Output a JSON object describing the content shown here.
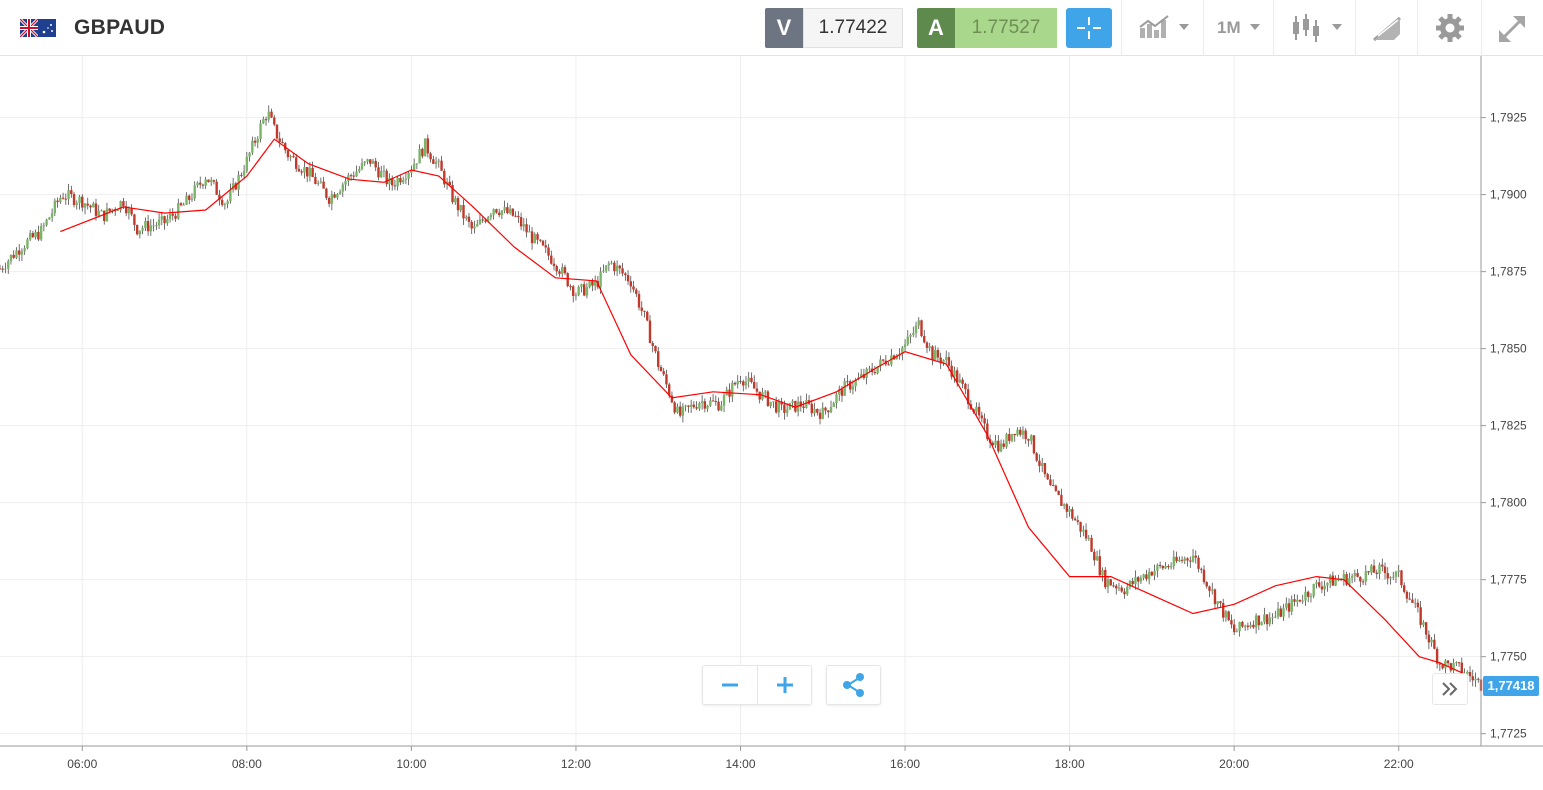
{
  "header": {
    "symbol": "GBPAUD",
    "flag_icon": "gb-au-flag-icon",
    "sell_label": "V",
    "sell_price": "1.77422",
    "buy_label": "A",
    "buy_price": "1.77527",
    "timeframe": "1M",
    "buttons": [
      "crosshair-icon",
      "chart-type-icon",
      "timeframe-selector",
      "candlestick-icon",
      "drawing-tools-icon",
      "gear-icon",
      "fullscreen-icon"
    ]
  },
  "colors": {
    "up_candle": "#7ab567",
    "down_candle": "#c0392b",
    "moving_average": "#ff0000",
    "accent": "#3fa4e8",
    "grid": "#eeeeee"
  },
  "controls": {
    "zoom_out_icon": "minus-icon",
    "zoom_in_icon": "plus-icon",
    "share_icon": "share-icon",
    "scroll_end_icon": "double-chevron-right-icon"
  },
  "current_price_label": "1,77418",
  "chart_data": {
    "type": "candlestick",
    "x_tick_labels": [
      "06:00",
      "08:00",
      "10:00",
      "12:00",
      "14:00",
      "16:00",
      "18:00",
      "20:00",
      "22:00"
    ],
    "y_tick_labels": [
      "1,7925",
      "1,7900",
      "1,7875",
      "1,7850",
      "1,7825",
      "1,7800",
      "1,7775",
      "1,7750",
      "1,7725"
    ],
    "ylim": [
      1.7721,
      1.7945
    ],
    "x_range": [
      "05:00",
      "23:00"
    ],
    "grid": true,
    "moving_average": {
      "color": "red",
      "points": [
        [
          "05:44",
          1.7888
        ],
        [
          "06:30",
          1.7896
        ],
        [
          "07:00",
          1.7894
        ],
        [
          "07:30",
          1.7895
        ],
        [
          "08:00",
          1.7906
        ],
        [
          "08:20",
          1.7918
        ],
        [
          "08:45",
          1.791
        ],
        [
          "09:15",
          1.7905
        ],
        [
          "09:40",
          1.7904
        ],
        [
          "10:00",
          1.7908
        ],
        [
          "10:20",
          1.7906
        ],
        [
          "10:45",
          1.7896
        ],
        [
          "11:15",
          1.7883
        ],
        [
          "11:45",
          1.7873
        ],
        [
          "12:15",
          1.7872
        ],
        [
          "12:40",
          1.7848
        ],
        [
          "13:10",
          1.7834
        ],
        [
          "13:40",
          1.7836
        ],
        [
          "14:15",
          1.7835
        ],
        [
          "14:40",
          1.7831
        ],
        [
          "15:10",
          1.7836
        ],
        [
          "15:40",
          1.7844
        ],
        [
          "16:00",
          1.7849
        ],
        [
          "16:30",
          1.7845
        ],
        [
          "17:00",
          1.7822
        ],
        [
          "17:30",
          1.7792
        ],
        [
          "18:00",
          1.7776
        ],
        [
          "18:30",
          1.7776
        ],
        [
          "18:50",
          1.7772
        ],
        [
          "19:30",
          1.7764
        ],
        [
          "20:00",
          1.7767
        ],
        [
          "20:30",
          1.7773
        ],
        [
          "21:00",
          1.7776
        ],
        [
          "21:20",
          1.7775
        ],
        [
          "21:50",
          1.7762
        ],
        [
          "22:15",
          1.775
        ],
        [
          "22:30",
          1.7748
        ],
        [
          "22:50",
          1.7744
        ]
      ]
    },
    "close_path": [
      [
        "05:00",
        1.7876
      ],
      [
        "05:15",
        1.7883
      ],
      [
        "05:30",
        1.7888
      ],
      [
        "05:45",
        1.79
      ],
      [
        "06:00",
        1.7898
      ],
      [
        "06:15",
        1.7893
      ],
      [
        "06:30",
        1.7898
      ],
      [
        "06:40",
        1.7889
      ],
      [
        "07:00",
        1.7891
      ],
      [
        "07:15",
        1.7897
      ],
      [
        "07:30",
        1.7906
      ],
      [
        "07:45",
        1.7897
      ],
      [
        "08:00",
        1.7911
      ],
      [
        "08:10",
        1.7922
      ],
      [
        "08:15",
        1.7927
      ],
      [
        "08:20",
        1.7921
      ],
      [
        "08:30",
        1.7913
      ],
      [
        "08:45",
        1.7907
      ],
      [
        "09:00",
        1.7899
      ],
      [
        "09:15",
        1.7906
      ],
      [
        "09:30",
        1.7911
      ],
      [
        "09:45",
        1.7903
      ],
      [
        "10:00",
        1.7909
      ],
      [
        "10:10",
        1.7916
      ],
      [
        "10:20",
        1.7909
      ],
      [
        "10:30",
        1.7899
      ],
      [
        "10:45",
        1.7888
      ],
      [
        "11:00",
        1.7896
      ],
      [
        "11:15",
        1.7893
      ],
      [
        "11:30",
        1.7885
      ],
      [
        "11:45",
        1.7878
      ],
      [
        "12:00",
        1.7868
      ],
      [
        "12:15",
        1.7871
      ],
      [
        "12:25",
        1.7878
      ],
      [
        "12:40",
        1.7872
      ],
      [
        "12:50",
        1.786
      ],
      [
        "13:00",
        1.7845
      ],
      [
        "13:15",
        1.7828
      ],
      [
        "13:30",
        1.7833
      ],
      [
        "13:45",
        1.7832
      ],
      [
        "14:00",
        1.7841
      ],
      [
        "14:15",
        1.7835
      ],
      [
        "14:30",
        1.783
      ],
      [
        "14:45",
        1.7832
      ],
      [
        "15:00",
        1.7829
      ],
      [
        "15:15",
        1.7837
      ],
      [
        "15:30",
        1.7841
      ],
      [
        "15:45",
        1.7846
      ],
      [
        "16:00",
        1.7851
      ],
      [
        "16:10",
        1.7858
      ],
      [
        "16:20",
        1.7848
      ],
      [
        "16:30",
        1.7846
      ],
      [
        "16:45",
        1.7835
      ],
      [
        "17:00",
        1.7822
      ],
      [
        "17:10",
        1.7818
      ],
      [
        "17:20",
        1.7824
      ],
      [
        "17:30",
        1.7822
      ],
      [
        "17:45",
        1.7805
      ],
      [
        "18:00",
        1.7797
      ],
      [
        "18:15",
        1.7787
      ],
      [
        "18:25",
        1.7775
      ],
      [
        "18:40",
        1.7772
      ],
      [
        "19:00",
        1.7778
      ],
      [
        "19:15",
        1.778
      ],
      [
        "19:30",
        1.7783
      ],
      [
        "19:45",
        1.777
      ],
      [
        "20:00",
        1.7758
      ],
      [
        "20:15",
        1.7762
      ],
      [
        "20:30",
        1.7763
      ],
      [
        "20:45",
        1.7768
      ],
      [
        "21:00",
        1.7773
      ],
      [
        "21:15",
        1.7775
      ],
      [
        "21:30",
        1.7776
      ],
      [
        "21:45",
        1.7778
      ],
      [
        "22:00",
        1.7776
      ],
      [
        "22:15",
        1.7763
      ],
      [
        "22:30",
        1.7748
      ],
      [
        "22:45",
        1.7746
      ],
      [
        "23:00",
        1.7741
      ]
    ]
  }
}
